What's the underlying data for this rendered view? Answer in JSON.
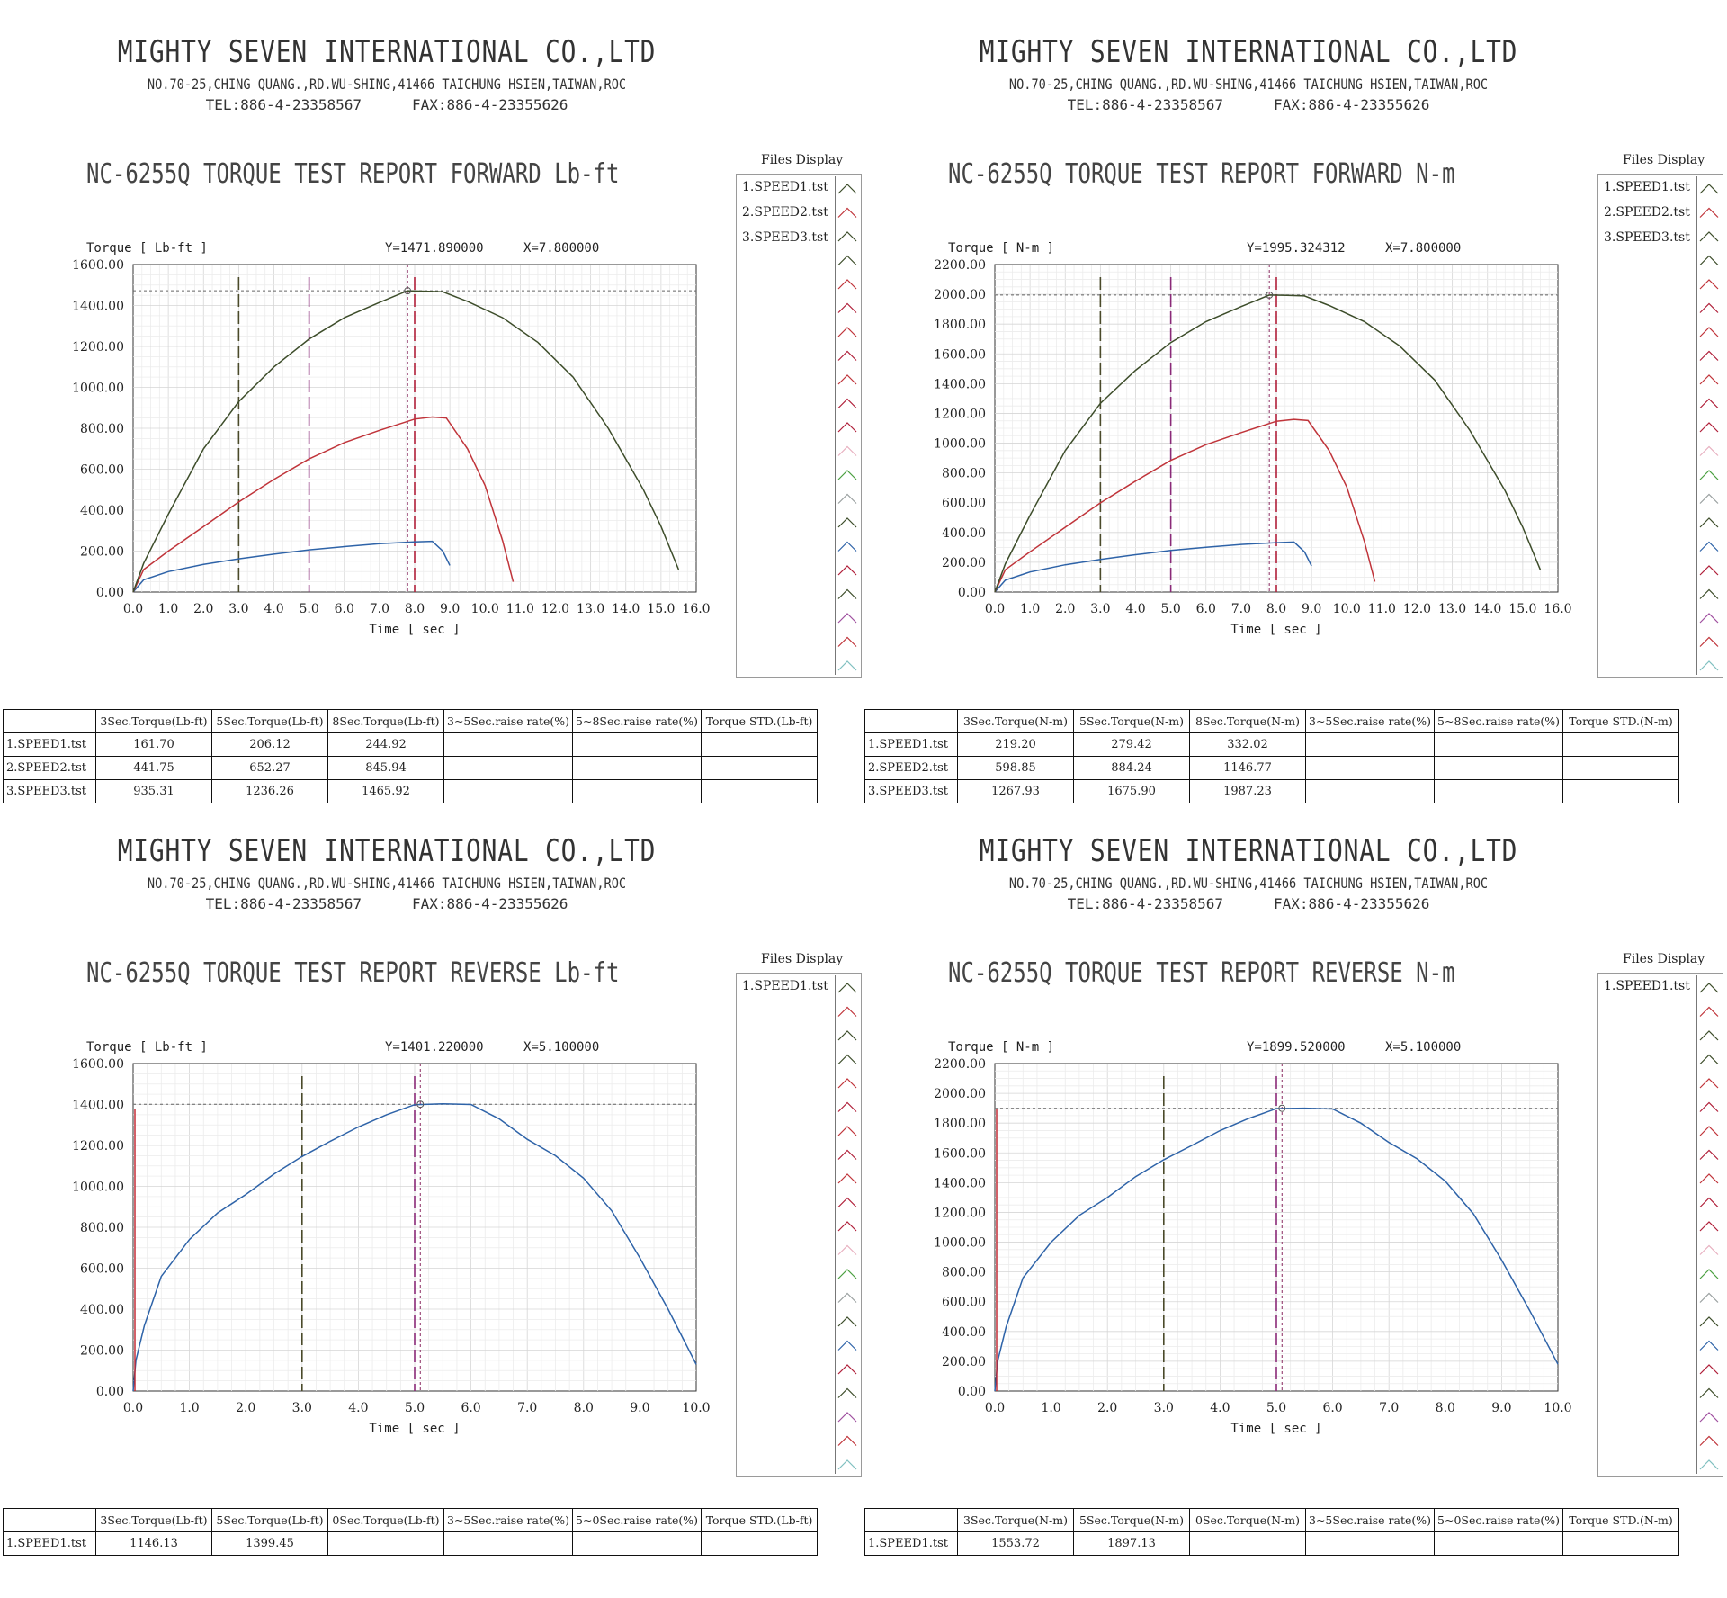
{
  "company": {
    "name": "MIGHTY SEVEN INTERNATIONAL CO.,LTD",
    "address": "NO.70-25,CHING QUANG.,RD.WU-SHING,41466 TAICHUNG HSIEN,TAIWAN,ROC",
    "tel": "TEL:886-4-23358567",
    "fax": "FAX:886-4-23355626"
  },
  "files_display_label": "Files Display",
  "x_axis_label": "Time [ sec ]",
  "colors": {
    "speed1": "#2e63a8",
    "speed2": "#c0343a",
    "speed3": "#3d4d2a",
    "marker3": "#4a4a2a",
    "marker5": "#8a2a78",
    "marker8": "#b0203a"
  },
  "panels": [
    {
      "title": "NC-6255Q TORQUE TEST REPORT FORWARD Lb-ft",
      "y_axis_label": "Torque [ Lb-ft ]",
      "cursor_y": "Y=1471.890000",
      "cursor_x": "X=7.800000",
      "files": [
        "1.SPEED1.tst",
        "2.SPEED2.tst",
        "3.SPEED3.tst"
      ],
      "table": {
        "headers": [
          "",
          "3Sec.Torque(Lb-ft)",
          "5Sec.Torque(Lb-ft)",
          "8Sec.Torque(Lb-ft)",
          "3~5Sec.raise rate(%)",
          "5~8Sec.raise rate(%)",
          "Torque STD.(Lb-ft)"
        ],
        "rows": [
          [
            "1.SPEED1.tst",
            "161.70",
            "206.12",
            "244.92",
            "",
            "",
            ""
          ],
          [
            "2.SPEED2.tst",
            "441.75",
            "652.27",
            "845.94",
            "",
            "",
            ""
          ],
          [
            "3.SPEED3.tst",
            "935.31",
            "1236.26",
            "1465.92",
            "",
            "",
            ""
          ]
        ]
      }
    },
    {
      "title": "NC-6255Q TORQUE TEST REPORT FORWARD N-m",
      "y_axis_label": "Torque [ N-m ]",
      "cursor_y": "Y=1995.324312",
      "cursor_x": "X=7.800000",
      "files": [
        "1.SPEED1.tst",
        "2.SPEED2.tst",
        "3.SPEED3.tst"
      ],
      "table": {
        "headers": [
          "",
          "3Sec.Torque(N-m)",
          "5Sec.Torque(N-m)",
          "8Sec.Torque(N-m)",
          "3~5Sec.raise rate(%)",
          "5~8Sec.raise rate(%)",
          "Torque STD.(N-m)"
        ],
        "rows": [
          [
            "1.SPEED1.tst",
            "219.20",
            "279.42",
            "332.02",
            "",
            "",
            ""
          ],
          [
            "2.SPEED2.tst",
            "598.85",
            "884.24",
            "1146.77",
            "",
            "",
            ""
          ],
          [
            "3.SPEED3.tst",
            "1267.93",
            "1675.90",
            "1987.23",
            "",
            "",
            ""
          ]
        ]
      }
    },
    {
      "title": "NC-6255Q TORQUE TEST REPORT REVERSE Lb-ft",
      "y_axis_label": "Torque [ Lb-ft ]",
      "cursor_y": "Y=1401.220000",
      "cursor_x": "X=5.100000",
      "files": [
        "1.SPEED1.tst"
      ],
      "table": {
        "headers": [
          "",
          "3Sec.Torque(Lb-ft)",
          "5Sec.Torque(Lb-ft)",
          "0Sec.Torque(Lb-ft)",
          "3~5Sec.raise rate(%)",
          "5~0Sec.raise rate(%)",
          "Torque STD.(Lb-ft)"
        ],
        "rows": [
          [
            "1.SPEED1.tst",
            "1146.13",
            "1399.45",
            "",
            "",
            "",
            ""
          ]
        ]
      }
    },
    {
      "title": "NC-6255Q TORQUE TEST REPORT REVERSE N-m",
      "y_axis_label": "Torque [ N-m ]",
      "cursor_y": "Y=1899.520000",
      "cursor_x": "X=5.100000",
      "files": [
        "1.SPEED1.tst"
      ],
      "table": {
        "headers": [
          "",
          "3Sec.Torque(N-m)",
          "5Sec.Torque(N-m)",
          "0Sec.Torque(N-m)",
          "3~5Sec.raise rate(%)",
          "5~0Sec.raise rate(%)",
          "Torque STD.(N-m)"
        ],
        "rows": [
          [
            "1.SPEED1.tst",
            "1553.72",
            "1897.13",
            "",
            "",
            "",
            ""
          ]
        ]
      }
    }
  ],
  "chart_data": [
    {
      "type": "line",
      "xlabel": "Time [ sec ]",
      "ylabel": "Torque [ Lb-ft ]",
      "xlim": [
        0,
        16
      ],
      "ylim": [
        0,
        1600
      ],
      "x_ticks": [
        "0.0",
        "1.0",
        "2.0",
        "3.0",
        "4.0",
        "5.0",
        "6.0",
        "7.0",
        "8.0",
        "9.0",
        "10.0",
        "11.0",
        "12.0",
        "13.0",
        "14.0",
        "15.0",
        "16.0"
      ],
      "y_ticks": [
        "0.00",
        "200.00",
        "400.00",
        "600.00",
        "800.00",
        "1000.00",
        "1200.00",
        "1400.00",
        "1600.00"
      ],
      "markers_x": [
        3,
        5,
        8
      ],
      "cursor": {
        "x": 7.8,
        "y": 1471.89
      },
      "series": [
        {
          "name": "1.SPEED1.tst",
          "x": [
            0,
            0.3,
            1,
            2,
            3,
            4,
            5,
            6,
            7,
            8,
            8.5,
            8.8,
            9
          ],
          "y": [
            0,
            60,
            100,
            135,
            162,
            185,
            206,
            222,
            236,
            245,
            248,
            200,
            130
          ]
        },
        {
          "name": "2.SPEED2.tst",
          "x": [
            0,
            0.3,
            1,
            2,
            3,
            4,
            5,
            6,
            7,
            8,
            8.5,
            8.9,
            9.5,
            10,
            10.5,
            10.8
          ],
          "y": [
            0,
            110,
            200,
            320,
            440,
            550,
            650,
            730,
            790,
            845,
            855,
            850,
            700,
            520,
            250,
            50
          ]
        },
        {
          "name": "3.SPEED3.tst",
          "x": [
            0,
            0.3,
            1,
            2,
            3,
            4,
            5,
            6,
            7,
            7.8,
            8.3,
            8.8,
            9.5,
            10.5,
            11.5,
            12.5,
            13.5,
            14.5,
            15,
            15.5
          ],
          "y": [
            0,
            140,
            380,
            700,
            930,
            1100,
            1236,
            1340,
            1415,
            1472,
            1470,
            1467,
            1420,
            1340,
            1220,
            1050,
            800,
            500,
            320,
            110
          ]
        }
      ]
    },
    {
      "type": "line",
      "xlabel": "Time [ sec ]",
      "ylabel": "Torque [ N-m ]",
      "xlim": [
        0,
        16
      ],
      "ylim": [
        0,
        2200
      ],
      "x_ticks": [
        "0.0",
        "1.0",
        "2.0",
        "3.0",
        "4.0",
        "5.0",
        "6.0",
        "7.0",
        "8.0",
        "9.0",
        "10.0",
        "11.0",
        "12.0",
        "13.0",
        "14.0",
        "15.0",
        "16.0"
      ],
      "y_ticks": [
        "0.00",
        "200.00",
        "400.00",
        "600.00",
        "800.00",
        "1000.00",
        "1200.00",
        "1400.00",
        "1600.00",
        "1800.00",
        "2000.00",
        "2200.00"
      ],
      "markers_x": [
        3,
        5,
        8
      ],
      "cursor": {
        "x": 7.8,
        "y": 1995.32
      },
      "series": [
        {
          "name": "1.SPEED1.tst",
          "x": [
            0,
            0.3,
            1,
            2,
            3,
            4,
            5,
            6,
            7,
            8,
            8.5,
            8.8,
            9
          ],
          "y": [
            0,
            80,
            135,
            183,
            219,
            251,
            279,
            301,
            320,
            332,
            336,
            270,
            175
          ]
        },
        {
          "name": "2.SPEED2.tst",
          "x": [
            0,
            0.3,
            1,
            2,
            3,
            4,
            5,
            6,
            7,
            8,
            8.5,
            8.9,
            9.5,
            10,
            10.5,
            10.8
          ],
          "y": [
            0,
            150,
            270,
            435,
            599,
            745,
            884,
            990,
            1071,
            1147,
            1160,
            1152,
            950,
            705,
            340,
            70
          ]
        },
        {
          "name": "3.SPEED3.tst",
          "x": [
            0,
            0.3,
            1,
            2,
            3,
            4,
            5,
            6,
            7,
            7.8,
            8.3,
            8.8,
            9.5,
            10.5,
            11.5,
            12.5,
            13.5,
            14.5,
            15,
            15.5
          ],
          "y": [
            0,
            190,
            515,
            950,
            1268,
            1490,
            1676,
            1817,
            1918,
            1995,
            1993,
            1989,
            1925,
            1817,
            1654,
            1424,
            1085,
            680,
            435,
            150
          ]
        }
      ]
    },
    {
      "type": "line",
      "xlabel": "Time [ sec ]",
      "ylabel": "Torque [ Lb-ft ]",
      "xlim": [
        0,
        10
      ],
      "ylim": [
        0,
        1600
      ],
      "x_ticks": [
        "0.0",
        "1.0",
        "2.0",
        "3.0",
        "4.0",
        "5.0",
        "6.0",
        "7.0",
        "8.0",
        "9.0",
        "10.0"
      ],
      "y_ticks": [
        "0.00",
        "200.00",
        "400.00",
        "600.00",
        "800.00",
        "1000.00",
        "1200.00",
        "1400.00",
        "1600.00"
      ],
      "markers_x": [
        3,
        5
      ],
      "cursor": {
        "x": 5.1,
        "y": 1401.22
      },
      "series": [
        {
          "name": "1.SPEED1.tst",
          "x": [
            0,
            0.05,
            0.2,
            0.5,
            1,
            1.5,
            2,
            2.5,
            3,
            3.5,
            4,
            4.5,
            5,
            5.5,
            6,
            6.5,
            7,
            7.5,
            8,
            8.5,
            9,
            9.5,
            10
          ],
          "y": [
            0,
            150,
            320,
            560,
            740,
            870,
            960,
            1060,
            1146,
            1220,
            1290,
            1350,
            1399,
            1403,
            1400,
            1330,
            1230,
            1150,
            1040,
            880,
            650,
            400,
            130
          ]
        }
      ]
    },
    {
      "type": "line",
      "xlabel": "Time [ sec ]",
      "ylabel": "Torque [ N-m ]",
      "xlim": [
        0,
        10
      ],
      "ylim": [
        0,
        2200
      ],
      "x_ticks": [
        "0.0",
        "1.0",
        "2.0",
        "3.0",
        "4.0",
        "5.0",
        "6.0",
        "7.0",
        "8.0",
        "9.0",
        "10.0"
      ],
      "y_ticks": [
        "0.00",
        "200.00",
        "400.00",
        "600.00",
        "800.00",
        "1000.00",
        "1200.00",
        "1400.00",
        "1600.00",
        "1800.00",
        "2000.00",
        "2200.00"
      ],
      "markers_x": [
        3,
        5
      ],
      "cursor": {
        "x": 5.1,
        "y": 1899.52
      },
      "series": [
        {
          "name": "1.SPEED1.tst",
          "x": [
            0,
            0.05,
            0.2,
            0.5,
            1,
            1.5,
            2,
            2.5,
            3,
            3.5,
            4,
            4.5,
            5,
            5.5,
            6,
            6.5,
            7,
            7.5,
            8,
            8.5,
            9,
            9.5,
            10
          ],
          "y": [
            0,
            200,
            430,
            760,
            1000,
            1180,
            1300,
            1440,
            1554,
            1650,
            1750,
            1830,
            1897,
            1900,
            1895,
            1800,
            1670,
            1560,
            1410,
            1190,
            880,
            540,
            180
          ]
        }
      ]
    }
  ]
}
